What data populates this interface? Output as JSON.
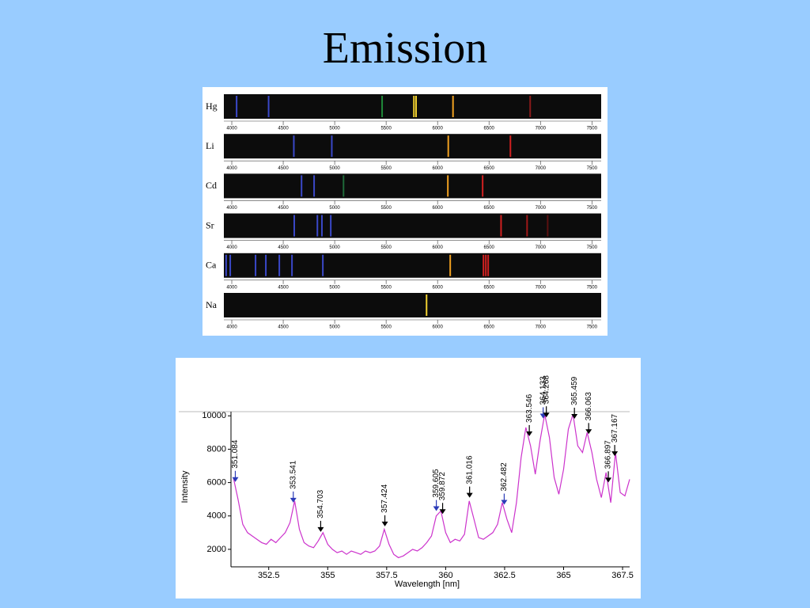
{
  "title": "Emission",
  "spectra": {
    "xlim": [
      3923,
      7590
    ],
    "xticks": [
      4000,
      4500,
      5000,
      5500,
      6000,
      6500,
      7000,
      7500
    ],
    "rows": [
      {
        "element": "Hg",
        "lines": [
          {
            "wavelength": 4047,
            "color": "#3a48c8"
          },
          {
            "wavelength": 4358,
            "color": "#3a48c8"
          },
          {
            "wavelength": 5461,
            "color": "#1f8a3a"
          },
          {
            "wavelength": 5770,
            "color": "#f0d030"
          },
          {
            "wavelength": 5791,
            "color": "#f0d030"
          },
          {
            "wavelength": 6150,
            "color": "#f0a020"
          },
          {
            "wavelength": 6900,
            "color": "#8a1a1a"
          }
        ]
      },
      {
        "element": "Li",
        "lines": [
          {
            "wavelength": 4603,
            "color": "#3a48c8"
          },
          {
            "wavelength": 4972,
            "color": "#3a48c8"
          },
          {
            "wavelength": 6104,
            "color": "#f0a020"
          },
          {
            "wavelength": 6708,
            "color": "#d02020"
          }
        ]
      },
      {
        "element": "Cd",
        "lines": [
          {
            "wavelength": 4678,
            "color": "#3a48c8"
          },
          {
            "wavelength": 4800,
            "color": "#3a48c8"
          },
          {
            "wavelength": 5086,
            "color": "#1f6a3a"
          },
          {
            "wavelength": 6100,
            "color": "#f0a020"
          },
          {
            "wavelength": 6438,
            "color": "#d02020"
          }
        ]
      },
      {
        "element": "Sr",
        "lines": [
          {
            "wavelength": 4607,
            "color": "#3a48c8"
          },
          {
            "wavelength": 4832,
            "color": "#3a48c8"
          },
          {
            "wavelength": 4876,
            "color": "#3a48c8"
          },
          {
            "wavelength": 4962,
            "color": "#3a48c8"
          },
          {
            "wavelength": 6617,
            "color": "#d02020"
          },
          {
            "wavelength": 6870,
            "color": "#a01818"
          },
          {
            "wavelength": 7070,
            "color": "#5a1010"
          }
        ]
      },
      {
        "element": "Ca",
        "lines": [
          {
            "wavelength": 3945,
            "color": "#3a48c8"
          },
          {
            "wavelength": 3985,
            "color": "#3a48c8"
          },
          {
            "wavelength": 4231,
            "color": "#3a48c8"
          },
          {
            "wavelength": 4331,
            "color": "#3a48c8"
          },
          {
            "wavelength": 4462,
            "color": "#3a48c8"
          },
          {
            "wavelength": 4585,
            "color": "#3a48c8"
          },
          {
            "wavelength": 4885,
            "color": "#3a48c8"
          },
          {
            "wavelength": 6123,
            "color": "#f0a020"
          },
          {
            "wavelength": 6446,
            "color": "#d02020"
          },
          {
            "wavelength": 6469,
            "color": "#d02020"
          },
          {
            "wavelength": 6492,
            "color": "#d02020"
          }
        ]
      },
      {
        "element": "Na",
        "lines": [
          {
            "wavelength": 5893,
            "color": "#f0d030"
          }
        ]
      }
    ]
  },
  "chart_data": {
    "type": "line",
    "xlabel": "Wavelength [nm]",
    "ylabel": "Intensity",
    "color": "#cc33cc",
    "xlim": [
      350.9,
      367.8
    ],
    "ylim": [
      950,
      10250
    ],
    "xticks": [
      352.5,
      355,
      357.5,
      360,
      362.5,
      365,
      367.5
    ],
    "yticks": [
      2000,
      4000,
      6000,
      8000,
      10000
    ],
    "x": [
      351.0,
      351.2,
      351.4,
      351.6,
      351.8,
      352.0,
      352.2,
      352.4,
      352.6,
      352.8,
      353.0,
      353.2,
      353.4,
      353.6,
      353.8,
      354.0,
      354.2,
      354.4,
      354.6,
      354.8,
      355.0,
      355.2,
      355.4,
      355.6,
      355.8,
      356.0,
      356.2,
      356.4,
      356.6,
      356.8,
      357.0,
      357.2,
      357.4,
      357.6,
      357.8,
      358.0,
      358.2,
      358.4,
      358.6,
      358.8,
      359.0,
      359.2,
      359.4,
      359.6,
      359.8,
      360.0,
      360.2,
      360.4,
      360.6,
      360.8,
      361.0,
      361.2,
      361.4,
      361.6,
      361.8,
      362.0,
      362.2,
      362.4,
      362.6,
      362.8,
      363.0,
      363.2,
      363.4,
      363.6,
      363.8,
      364.0,
      364.2,
      364.4,
      364.6,
      364.8,
      365.0,
      365.2,
      365.4,
      365.6,
      365.8,
      366.0,
      366.2,
      366.4,
      366.6,
      366.8,
      367.0,
      367.2,
      367.4,
      367.6,
      367.8
    ],
    "values": [
      6300,
      5000,
      3500,
      3000,
      2800,
      2600,
      2400,
      2300,
      2600,
      2400,
      2700,
      3000,
      3600,
      4900,
      3200,
      2400,
      2200,
      2100,
      2500,
      3000,
      2300,
      2000,
      1800,
      1900,
      1700,
      1900,
      1800,
      1700,
      1900,
      1800,
      1900,
      2200,
      3200,
      2300,
      1700,
      1500,
      1600,
      1800,
      2000,
      1900,
      2100,
      2400,
      2800,
      4000,
      4300,
      3000,
      2400,
      2600,
      2500,
      2900,
      4900,
      3800,
      2700,
      2600,
      2800,
      3000,
      3500,
      4800,
      3800,
      3000,
      4800,
      7500,
      9300,
      8200,
      6500,
      8500,
      10100,
      8700,
      6300,
      5300,
      6800,
      9200,
      10100,
      8200,
      7800,
      9000,
      7800,
      6200,
      5100,
      6600,
      4800,
      7800,
      5400,
      5200,
      6200
    ],
    "annotations": [
      {
        "x": 351.084,
        "color": "#2b3bb8"
      },
      {
        "x": 353.541,
        "color": "#2b3bb8"
      },
      {
        "x": 354.703,
        "color": "#000000"
      },
      {
        "x": 357.424,
        "color": "#000000"
      },
      {
        "x": 359.605,
        "color": "#2b3bb8"
      },
      {
        "x": 359.872,
        "color": "#000000"
      },
      {
        "x": 361.016,
        "color": "#000000"
      },
      {
        "x": 362.482,
        "color": "#2b3bb8"
      },
      {
        "x": 363.546,
        "color": "#000000"
      },
      {
        "x": 364.133,
        "color": "#2b3bb8"
      },
      {
        "x": 364.268,
        "color": "#000000"
      },
      {
        "x": 365.459,
        "color": "#000000"
      },
      {
        "x": 366.063,
        "color": "#000000"
      },
      {
        "x": 366.897,
        "color": "#000000"
      },
      {
        "x": 367.167,
        "color": "#000000"
      }
    ]
  }
}
